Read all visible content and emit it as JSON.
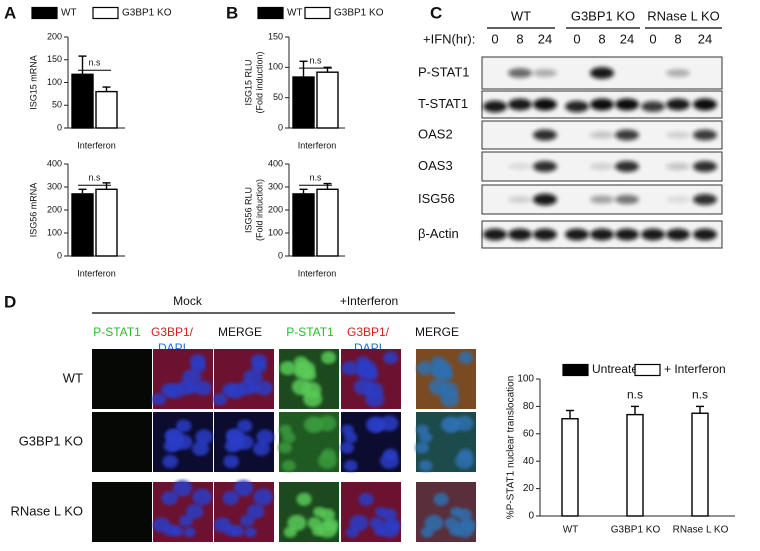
{
  "panel_labels": [
    "A",
    "B",
    "C",
    "D"
  ],
  "chart_data": [
    {
      "type": "bar",
      "ylabel": "ISG15 mRNA",
      "categories": [
        "Interferon"
      ],
      "series": [
        {
          "name": "WT",
          "color": "#000000",
          "values": [
            118
          ],
          "errors": [
            40
          ]
        },
        {
          "name": "G3BP1 KO",
          "color": "#ffffff",
          "values": [
            80
          ],
          "errors": [
            10
          ]
        }
      ],
      "ylim": [
        0,
        200
      ],
      "yticks": [
        0,
        50,
        100,
        150,
        200
      ],
      "significance": [
        "n.s"
      ]
    },
    {
      "type": "bar",
      "ylabel": "ISG56 mRNA",
      "categories": [
        "Interferon"
      ],
      "series": [
        {
          "color": "#000000",
          "values": [
            270
          ],
          "errors": [
            20
          ]
        },
        {
          "color": "#ffffff",
          "values": [
            290
          ],
          "errors": [
            28
          ]
        }
      ],
      "ylim": [
        0,
        400
      ],
      "yticks": [
        0,
        100,
        200,
        300,
        400
      ],
      "significance": [
        "n.s"
      ]
    },
    {
      "type": "bar",
      "ylabel": [
        "ISG15 RLU",
        "(Fold induction)"
      ],
      "categories": [
        "Interferon"
      ],
      "series": [
        {
          "name": "WT",
          "color": "#000000",
          "values": [
            84
          ],
          "errors": [
            26
          ]
        },
        {
          "name": "G3BP1 KO",
          "color": "#ffffff",
          "values": [
            92
          ],
          "errors": [
            8
          ]
        }
      ],
      "ylim": [
        0,
        150
      ],
      "yticks": [
        0,
        50,
        100,
        150
      ],
      "significance": [
        "n.s"
      ]
    },
    {
      "type": "bar",
      "ylabel": [
        "ISG56 RLU",
        "(Fold induction)"
      ],
      "categories": [
        "Interferon"
      ],
      "series": [
        {
          "color": "#000000",
          "values": [
            270
          ],
          "errors": [
            20
          ]
        },
        {
          "color": "#ffffff",
          "values": [
            290
          ],
          "errors": [
            25
          ]
        }
      ],
      "ylim": [
        0,
        400
      ],
      "yticks": [
        0,
        100,
        200,
        300,
        400
      ],
      "significance": [
        "n.s"
      ]
    },
    {
      "type": "bar",
      "ylabel": "%P-STAT1 nuclear translocation",
      "categories": [
        "WT",
        "G3BP1 KO",
        "RNase L KO"
      ],
      "series": [
        {
          "name": "Untreated",
          "color": "#000000",
          "values": [
            null,
            null,
            null
          ]
        },
        {
          "name": "+ Interferon",
          "color": "#ffffff",
          "values": [
            71,
            74,
            75
          ],
          "errors": [
            6,
            6,
            5
          ]
        }
      ],
      "ylim": [
        0,
        100
      ],
      "yticks": [
        0,
        20,
        40,
        60,
        80,
        100
      ],
      "significance": [
        null,
        "n.s",
        "n.s"
      ]
    }
  ],
  "blot": {
    "groups": [
      "WT",
      "G3BP1 KO",
      "RNase L KO"
    ],
    "time_label": "+IFN(hr):",
    "times": [
      "0",
      "8",
      "24"
    ],
    "rows": [
      "P-STAT1",
      "T-STAT1",
      "OAS2",
      "OAS3",
      "ISG56",
      "β-Actin"
    ]
  },
  "microscopy": {
    "conditions": [
      "Mock",
      "+Interferon"
    ],
    "channels": [
      "P-STAT1",
      "G3BP1/",
      "DAPI",
      "MERGE"
    ],
    "rows": [
      "WT",
      "G3BP1 KO",
      "RNase L KO"
    ]
  }
}
